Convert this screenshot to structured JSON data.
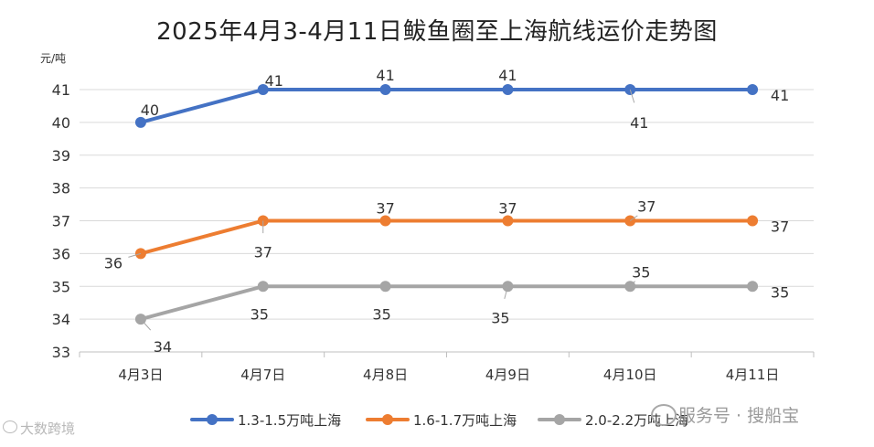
{
  "chart_data": {
    "type": "line",
    "title": "2025年4月3-4月11日鲅鱼圈至上海航线运价走势图",
    "ylabel": "元/吨",
    "categories": [
      "4月3日",
      "4月7日",
      "4月8日",
      "4月9日",
      "4月10日",
      "4月11日"
    ],
    "ylim": [
      33,
      41
    ],
    "yticks": [
      33,
      34,
      35,
      36,
      37,
      38,
      39,
      40,
      41
    ],
    "grid": true,
    "legend_position": "bottom",
    "series": [
      {
        "name": "1.3-1.5万吨上海",
        "color": "#4472C4",
        "values": [
          40,
          41,
          41,
          41,
          41,
          41
        ],
        "labels": [
          "40",
          "41",
          "41",
          "41",
          "41",
          "41"
        ]
      },
      {
        "name": "1.6-1.7万吨上海",
        "color": "#ED7D31",
        "values": [
          36,
          37,
          37,
          37,
          37,
          37
        ],
        "labels": [
          "36",
          "37",
          "37",
          "37",
          "37",
          "37"
        ]
      },
      {
        "name": "2.0-2.2万吨上海",
        "color": "#A5A5A5",
        "values": [
          34,
          35,
          35,
          35,
          35,
          35
        ],
        "labels": [
          "34",
          "35",
          "35",
          "35",
          "35",
          "35"
        ]
      }
    ]
  },
  "watermarks": {
    "right": "服务号 · 搜船宝",
    "left": "大数跨境"
  }
}
